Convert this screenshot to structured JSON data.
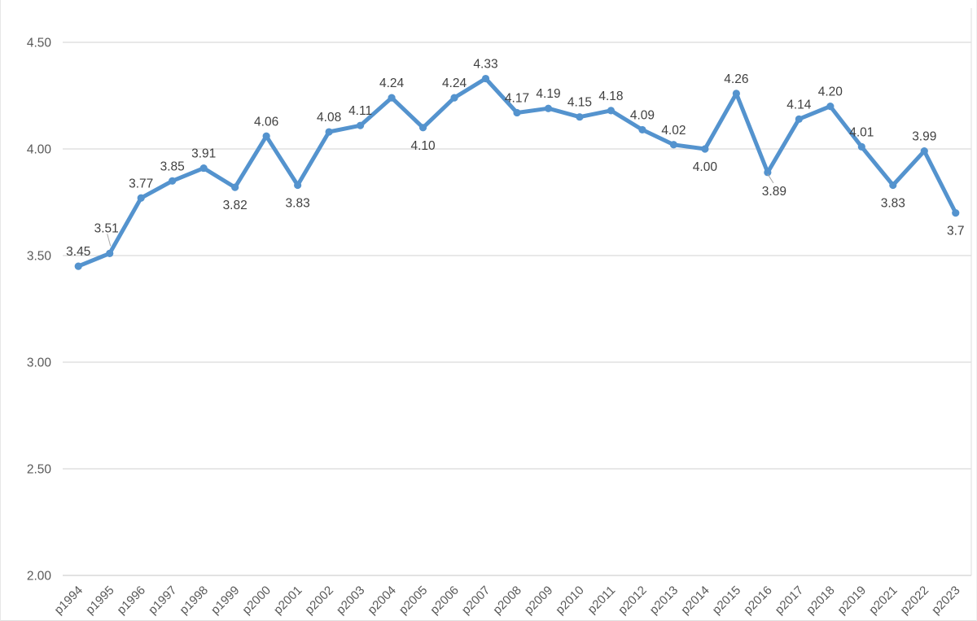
{
  "chart_data": {
    "type": "line",
    "title": "",
    "xlabel": "",
    "ylabel": "",
    "legend": false,
    "grid": true,
    "ylim": [
      2.0,
      4.5
    ],
    "yticks": [
      "4.50",
      "4.00",
      "3.50",
      "3.00",
      "2.50",
      "2.00"
    ],
    "categories": [
      "p1994",
      "p1995",
      "p1996",
      "p1997",
      "p1998",
      "p1999",
      "p2000",
      "p2001",
      "p2002",
      "p2003",
      "p2004",
      "p2005",
      "p2006",
      "p2007",
      "p2008",
      "p2009",
      "p2010",
      "p2011",
      "p2012",
      "p2013",
      "p2014",
      "p2015",
      "p2016",
      "p2017",
      "p2018",
      "p2019",
      "p2021",
      "p2022",
      "p2023"
    ],
    "values": [
      3.45,
      3.51,
      3.77,
      3.85,
      3.91,
      3.82,
      4.06,
      3.83,
      4.08,
      4.11,
      4.24,
      4.1,
      4.24,
      4.33,
      4.17,
      4.19,
      4.15,
      4.18,
      4.09,
      4.02,
      4.0,
      4.26,
      3.89,
      4.14,
      4.2,
      4.01,
      3.83,
      3.99,
      3.7
    ],
    "data_labels": [
      "3.45",
      "3.51",
      "3.77",
      "3.85",
      "3.91",
      "3.82",
      "4.06",
      "3.83",
      "4.08",
      "4.11",
      "4.24",
      "4.10",
      "4.24",
      "4.33",
      "4.17",
      "4.19",
      "4.15",
      "4.18",
      "4.09",
      "4.02",
      "4.00",
      "4.26",
      "3.89",
      "4.14",
      "4.20",
      "4.01",
      "3.83",
      "3.99",
      "3.7"
    ],
    "label_positions": [
      "above",
      "above-leader",
      "above",
      "above",
      "above",
      "below",
      "above",
      "below",
      "above",
      "above",
      "above",
      "below",
      "above",
      "above",
      "above",
      "above",
      "above",
      "above",
      "above",
      "above",
      "below",
      "above",
      "below-leader",
      "above",
      "above",
      "above",
      "below",
      "above",
      "below"
    ],
    "colors": {
      "line": "#5493CE",
      "marker": "#5493CE",
      "gridline": "#D9D9D9",
      "axis_line": "#D6D6D6",
      "axis_label": "#595959",
      "data_label": "#404040",
      "leader_line": "#A6A6A6"
    }
  }
}
